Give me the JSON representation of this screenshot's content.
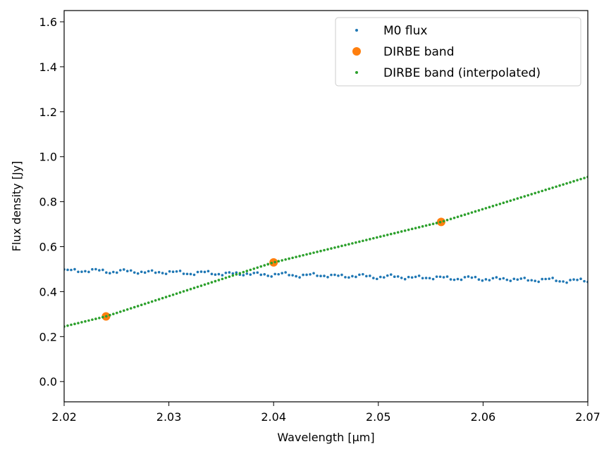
{
  "chart_data": {
    "type": "scatter",
    "title": "",
    "xlabel": "Wavelength [µm]",
    "ylabel": "Flux density [Jy]",
    "xlim": [
      2.02,
      2.07
    ],
    "ylim": [
      -0.09,
      1.65
    ],
    "xticks": [
      2.02,
      2.03,
      2.04,
      2.05,
      2.06,
      2.07
    ],
    "xtick_labels": [
      "2.02",
      "2.03",
      "2.04",
      "2.05",
      "2.06",
      "2.07"
    ],
    "yticks": [
      0.0,
      0.2,
      0.4,
      0.6,
      0.8,
      1.0,
      1.2,
      1.4,
      1.6
    ],
    "ytick_labels": [
      "0.0",
      "0.2",
      "0.4",
      "0.6",
      "0.8",
      "1.0",
      "1.2",
      "1.4",
      "1.6"
    ],
    "grid": false,
    "legend_position": "top-right",
    "series": [
      {
        "name": "M0 flux",
        "color": "#1f77b4",
        "marker": "small-dot",
        "generator": "noisy-flat",
        "x_start": 2.02,
        "x_end": 2.07,
        "n_points": 150,
        "y_start": 0.495,
        "y_end": 0.448
      },
      {
        "name": "DIRBE band",
        "color": "#ff7f0e",
        "marker": "large-dot",
        "x": [
          2.024,
          2.04,
          2.056
        ],
        "y": [
          0.29,
          0.53,
          0.71
        ]
      },
      {
        "name": "DIRBE band (interpolated)",
        "color": "#2ca02c",
        "marker": "small-dot",
        "generator": "piecewise-linear",
        "x_start": 2.02,
        "x_end": 2.07,
        "n_points": 150,
        "knots_x": [
          2.02,
          2.024,
          2.04,
          2.056,
          2.07
        ],
        "knots_y": [
          0.245,
          0.29,
          0.53,
          0.71,
          0.91
        ]
      }
    ]
  }
}
